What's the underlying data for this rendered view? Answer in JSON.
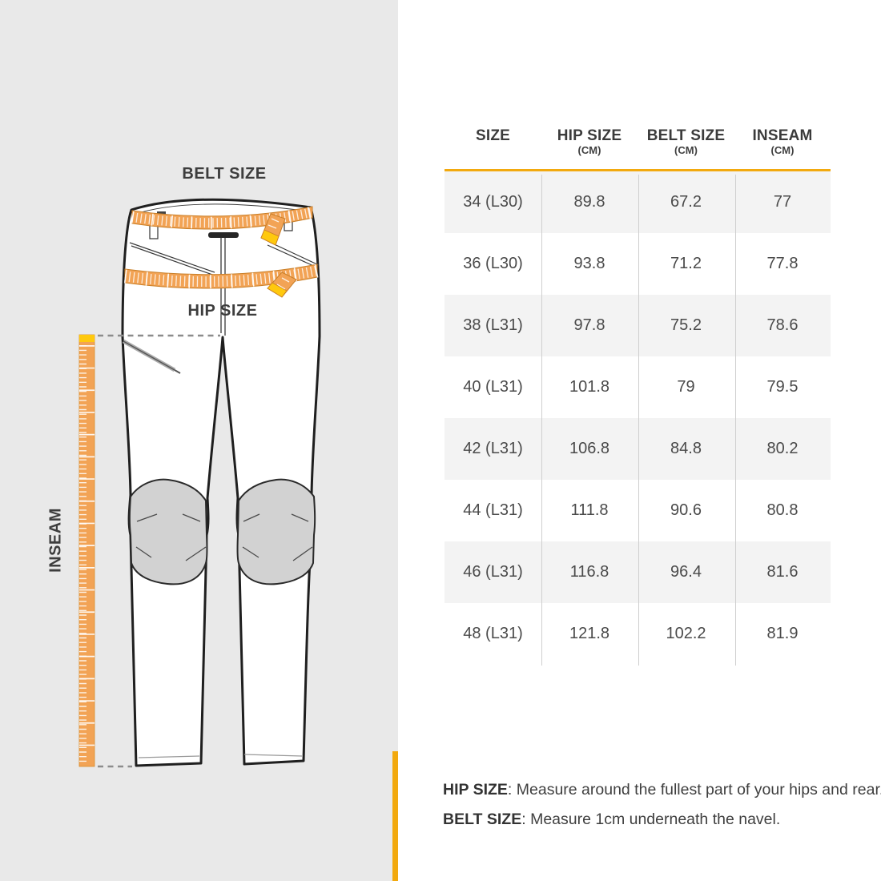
{
  "diagram": {
    "labels": {
      "belt": "BELT SIZE",
      "hip": "HIP SIZE",
      "inseam": "INSEAM"
    }
  },
  "table": {
    "headers": [
      {
        "label": "SIZE",
        "unit": ""
      },
      {
        "label": "HIP SIZE",
        "unit": "(CM)"
      },
      {
        "label": "BELT SIZE",
        "unit": "(CM)"
      },
      {
        "label": "INSEAM",
        "unit": "(CM)"
      }
    ],
    "rows": [
      [
        "34 (L30)",
        "89.8",
        "67.2",
        "77"
      ],
      [
        "36 (L30)",
        "93.8",
        "71.2",
        "77.8"
      ],
      [
        "38 (L31)",
        "97.8",
        "75.2",
        "78.6"
      ],
      [
        "40 (L31)",
        "101.8",
        "79",
        "79.5"
      ],
      [
        "42 (L31)",
        "106.8",
        "84.8",
        "80.2"
      ],
      [
        "44 (L31)",
        "111.8",
        "90.6",
        "80.8"
      ],
      [
        "46 (L31)",
        "116.8",
        "96.4",
        "81.6"
      ],
      [
        "48 (L31)",
        "121.8",
        "102.2",
        "81.9"
      ]
    ]
  },
  "notes": [
    {
      "label": "HIP SIZE",
      "text": ": Measure around the fullest part of your hips and rear."
    },
    {
      "label": "BELT SIZE",
      "text": ": Measure 1cm underneath the navel."
    }
  ],
  "colors": {
    "accent": "#F2A90E",
    "tape": "#F2A355",
    "tape_border": "#C97F28",
    "tape_tip": "#FFC90E",
    "panel_bg": "#E9E9E9",
    "row_stripe": "#F3F3F3",
    "knee_patch": "#D2D2D2",
    "text_dark": "#3D3D3D"
  }
}
